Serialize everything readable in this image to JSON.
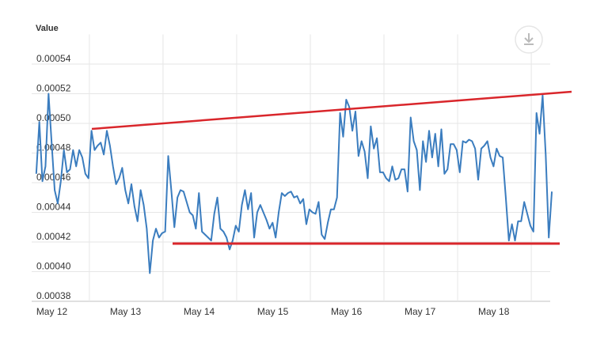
{
  "chart_data": {
    "type": "line",
    "y_axis_label": "Value",
    "x": [
      0,
      1,
      2,
      3,
      4,
      5,
      6,
      7,
      8,
      9,
      10,
      11,
      12,
      13,
      14,
      15,
      16,
      17,
      18,
      19,
      20,
      21,
      22,
      23,
      24,
      25,
      26,
      27,
      28,
      29,
      30,
      31,
      32,
      33,
      34,
      35,
      36,
      37,
      38,
      39,
      40,
      41,
      42,
      43,
      44,
      45,
      46,
      47,
      48,
      49,
      50,
      51,
      52,
      53,
      54,
      55,
      56,
      57,
      58,
      59,
      60,
      61,
      62,
      63,
      64,
      65,
      66,
      67,
      68,
      69,
      70,
      71,
      72,
      73,
      74,
      75,
      76,
      77,
      78,
      79,
      80,
      81,
      82,
      83,
      84,
      85,
      86,
      87,
      88,
      89,
      90,
      91,
      92,
      93,
      94,
      95,
      96,
      97,
      98,
      99,
      100,
      101,
      102,
      103,
      104,
      105,
      106,
      107,
      108,
      109,
      110,
      111,
      112,
      113,
      114,
      115,
      116,
      117,
      118,
      119,
      120,
      121,
      122,
      123,
      124,
      125,
      126,
      127,
      128,
      129,
      130,
      131,
      132,
      133,
      134,
      135,
      136,
      137,
      138,
      139,
      140,
      141,
      142,
      143,
      144,
      145,
      146,
      147,
      148,
      149,
      150,
      151,
      152,
      153,
      154,
      155,
      156,
      157,
      158,
      159,
      160,
      161,
      162,
      163,
      164,
      165,
      166,
      167,
      168
    ],
    "series": [
      {
        "name": "Value",
        "color": "#3b7dbf",
        "values": [
          0.000466,
          0.000501,
          0.000461,
          0.000471,
          0.00052,
          0.000487,
          0.000455,
          0.000446,
          0.000461,
          0.000482,
          0.000467,
          0.000469,
          0.000482,
          0.000471,
          0.000482,
          0.000477,
          0.000466,
          0.000463,
          0.000495,
          0.000482,
          0.000485,
          0.000487,
          0.000479,
          0.000495,
          0.000485,
          0.000471,
          0.000459,
          0.000463,
          0.00047,
          0.000455,
          0.000446,
          0.000459,
          0.000444,
          0.000434,
          0.000455,
          0.000445,
          0.000429,
          0.000399,
          0.000421,
          0.000429,
          0.000423,
          0.000426,
          0.000427,
          0.000478,
          0.000455,
          0.00043,
          0.00045,
          0.000455,
          0.000454,
          0.000447,
          0.00044,
          0.000438,
          0.000429,
          0.000453,
          0.000427,
          0.000425,
          0.000423,
          0.000421,
          0.000439,
          0.00045,
          0.000429,
          0.000427,
          0.000423,
          0.000415,
          0.000421,
          0.000431,
          0.000427,
          0.000445,
          0.000455,
          0.000442,
          0.000453,
          0.000423,
          0.00044,
          0.000445,
          0.00044,
          0.000435,
          0.000429,
          0.000433,
          0.000423,
          0.00044,
          0.000453,
          0.000451,
          0.000453,
          0.000454,
          0.00045,
          0.000451,
          0.000446,
          0.000449,
          0.000432,
          0.000442,
          0.00044,
          0.000439,
          0.000447,
          0.000425,
          0.000422,
          0.000433,
          0.000442,
          0.000442,
          0.00045,
          0.000507,
          0.000491,
          0.000516,
          0.000511,
          0.000495,
          0.000508,
          0.000478,
          0.000488,
          0.000481,
          0.000463,
          0.000498,
          0.000483,
          0.00049,
          0.000467,
          0.000467,
          0.000463,
          0.000461,
          0.000471,
          0.000462,
          0.000463,
          0.000469,
          0.000469,
          0.000454,
          0.000504,
          0.000488,
          0.000482,
          0.000455,
          0.000488,
          0.000474,
          0.000495,
          0.000477,
          0.000493,
          0.000471,
          0.000496,
          0.000466,
          0.000469,
          0.000486,
          0.000486,
          0.000482,
          0.000467,
          0.000488,
          0.000487,
          0.000489,
          0.000488,
          0.000483,
          0.000462,
          0.000483,
          0.000485,
          0.000488,
          0.000477,
          0.000471,
          0.000483,
          0.000478,
          0.000477,
          0.00045,
          0.000421,
          0.000432,
          0.000421,
          0.000434,
          0.000434,
          0.000447,
          0.000439,
          0.000431,
          0.000427,
          0.000507,
          0.000493,
          0.000519,
          0.000479,
          0.000423,
          0.000454
        ]
      }
    ],
    "xlim": [
      -1.5,
      168.5
    ],
    "xticks": [
      {
        "value": 0,
        "label": "May 12"
      },
      {
        "value": 24,
        "label": "May 13"
      },
      {
        "value": 48,
        "label": "May 14"
      },
      {
        "value": 72,
        "label": "May 15"
      },
      {
        "value": 96,
        "label": "May 16"
      },
      {
        "value": 120,
        "label": "May 17"
      },
      {
        "value": 144,
        "label": "May 18"
      }
    ],
    "xgrid": [
      17.3,
      41.3,
      65.3,
      89.3,
      113.3,
      137.3,
      161.3
    ],
    "ylim": [
      0.00038,
      0.00056
    ],
    "yticks": [
      0.00038,
      {
        "value": 0.0004,
        "label": "0.00040"
      },
      0.00042,
      0.00044,
      0.00046,
      0.00048,
      {
        "value": 0.0005,
        "label": "0.00050"
      },
      0.00052,
      0.00054
    ],
    "grid": true
  }
}
